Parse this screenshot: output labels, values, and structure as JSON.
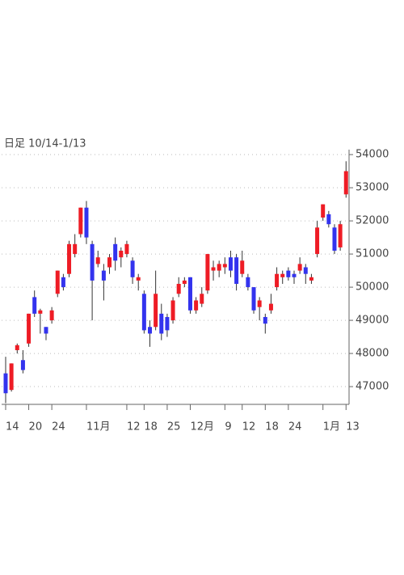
{
  "chart_data": {
    "type": "candlestick",
    "title": "日足 10/14-1/13",
    "categories": [
      "14",
      null,
      null,
      null,
      "20",
      null,
      null,
      null,
      "24",
      null,
      null,
      null,
      null,
      null,
      "11月",
      null,
      null,
      null,
      null,
      null,
      null,
      "12",
      null,
      null,
      "18",
      null,
      null,
      null,
      "25",
      null,
      null,
      null,
      "12月",
      null,
      null,
      null,
      null,
      null,
      "9",
      null,
      null,
      "12",
      null,
      null,
      null,
      "18",
      null,
      null,
      null,
      "24",
      null,
      null,
      null,
      null,
      null,
      "1月",
      null,
      null,
      null,
      "13"
    ],
    "open": [
      47400,
      46900,
      48100,
      47800,
      48300,
      49700,
      49200,
      48800,
      49000,
      49800,
      50300,
      50400,
      51000,
      51600,
      52400,
      51300,
      50700,
      50500,
      50600,
      51300,
      50900,
      51000,
      50800,
      50200,
      49800,
      48800,
      48800,
      49200,
      49100,
      49000,
      49800,
      50100,
      50300,
      49300,
      49500,
      49900,
      50500,
      50500,
      50600,
      50900,
      50900,
      50400,
      50300,
      50000,
      49400,
      49100,
      49300,
      50000,
      50300,
      50500,
      50400,
      50500,
      50600,
      50200,
      51000,
      52100,
      52200,
      51800,
      51200,
      52800
    ],
    "high": [
      47900,
      47700,
      48300,
      48100,
      49200,
      49900,
      49350,
      48800,
      49400,
      50500,
      50400,
      51400,
      51600,
      52400,
      52600,
      51400,
      51100,
      50700,
      51000,
      51500,
      51200,
      51400,
      50900,
      50400,
      49900,
      49000,
      50500,
      49500,
      49200,
      49700,
      50300,
      50300,
      50300,
      49700,
      50000,
      51000,
      50800,
      50800,
      50900,
      51100,
      51000,
      51100,
      50400,
      50000,
      49700,
      49200,
      49800,
      50600,
      50500,
      50600,
      50500,
      50900,
      50700,
      50400,
      52000,
      52500,
      52300,
      51900,
      52000,
      53800
    ],
    "low": [
      46500,
      46850,
      48000,
      47400,
      48200,
      49100,
      48600,
      48400,
      48900,
      49700,
      49900,
      50300,
      50900,
      51500,
      51300,
      49000,
      50600,
      49600,
      50400,
      50500,
      50600,
      50900,
      50100,
      49900,
      48600,
      48200,
      48700,
      48400,
      48500,
      48900,
      49700,
      50000,
      49200,
      49200,
      49400,
      49800,
      50200,
      50300,
      50400,
      50300,
      49900,
      50300,
      49900,
      49200,
      49000,
      48600,
      49200,
      49900,
      50100,
      50200,
      50100,
      50400,
      50100,
      50100,
      50900,
      52000,
      51800,
      51000,
      51100,
      52700
    ],
    "close": [
      46800,
      47700,
      48250,
      47500,
      49200,
      49200,
      49300,
      48600,
      49300,
      50500,
      50000,
      51300,
      51300,
      52400,
      51500,
      50200,
      50900,
      50200,
      50900,
      50800,
      51100,
      51300,
      50300,
      50300,
      48700,
      48600,
      49800,
      48600,
      48700,
      49600,
      50100,
      50200,
      49300,
      49600,
      49800,
      51000,
      50600,
      50700,
      50700,
      50500,
      50100,
      50800,
      50000,
      49300,
      49600,
      48900,
      49500,
      50400,
      50400,
      50300,
      50300,
      50700,
      50400,
      50300,
      51800,
      52500,
      51900,
      51100,
      51900,
      53500
    ],
    "up_color": "#ee1c25",
    "down_color": "#3333ee",
    "ylim": [
      46450,
      54150
    ],
    "yticks": [
      47000,
      48000,
      49000,
      50000,
      51000,
      52000,
      53000,
      54000
    ],
    "grid": true
  }
}
